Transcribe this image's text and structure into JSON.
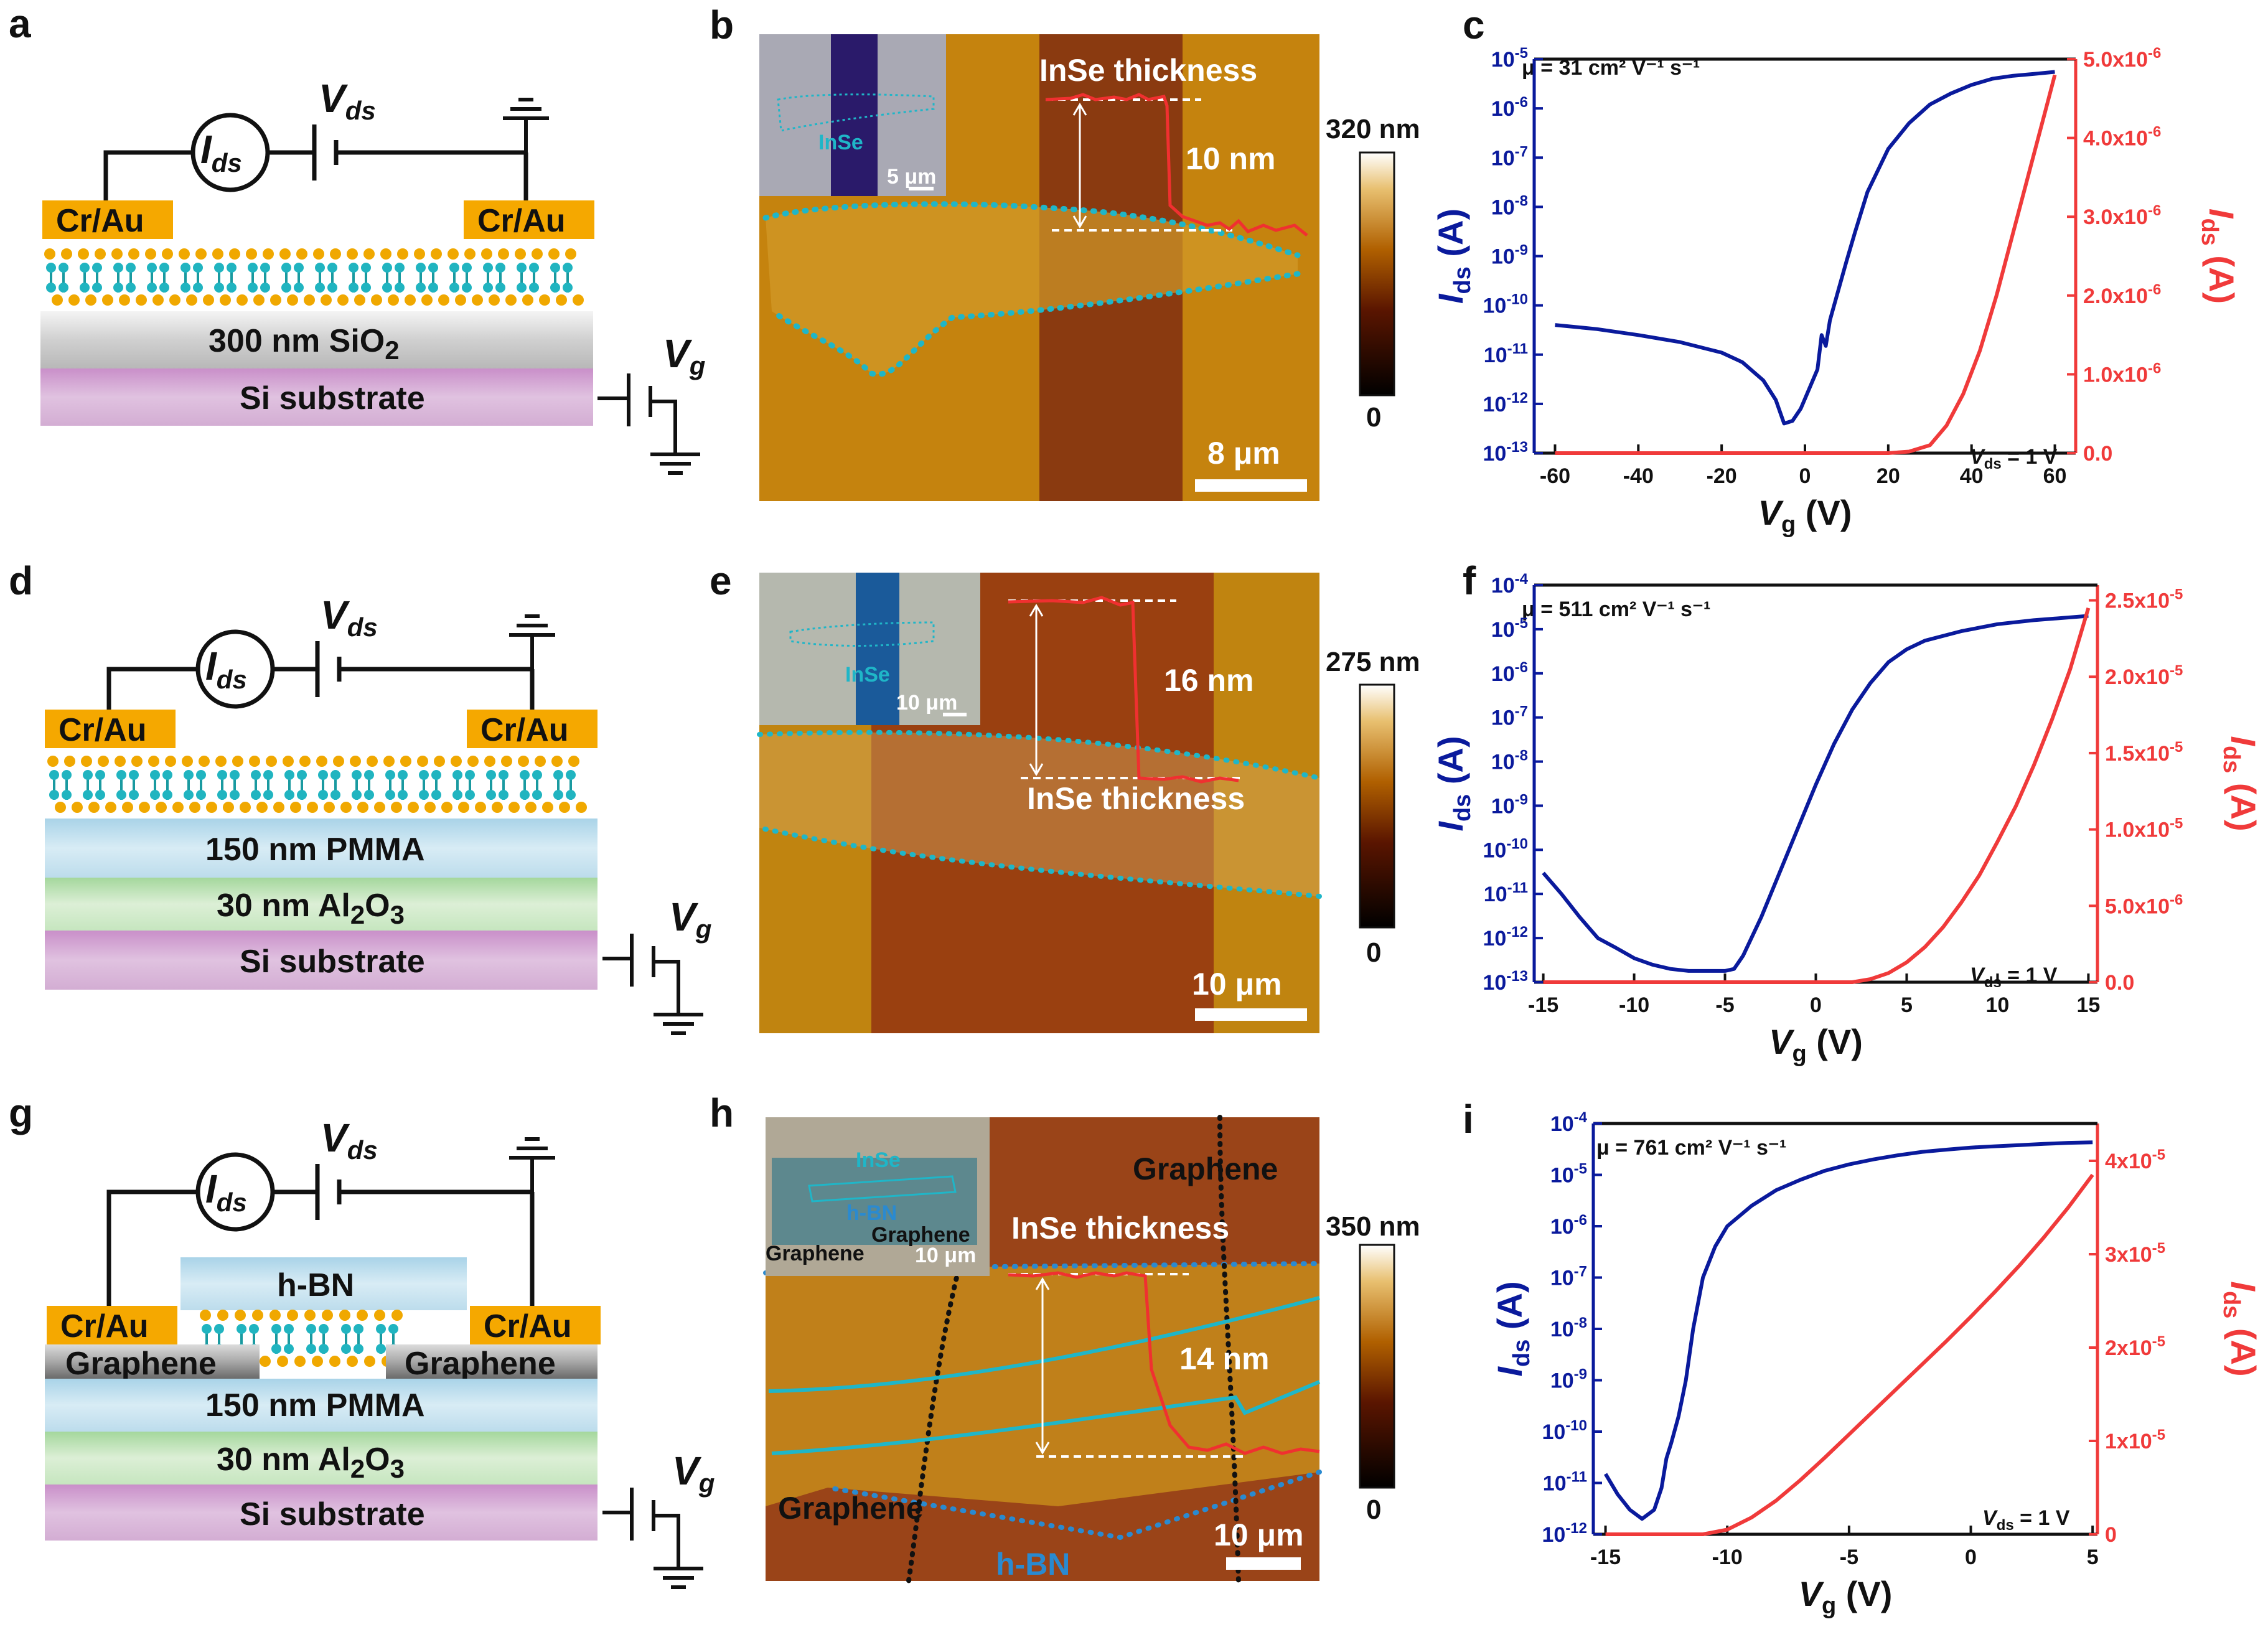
{
  "panels": {
    "a": {
      "label": "a",
      "vds": "V",
      "vds_sub": "ds",
      "ids": "I",
      "ids_sub": "ds",
      "vg": "V",
      "vg_sub": "g",
      "contact_left": "Cr/Au",
      "contact_right": "Cr/Au",
      "dielectric": "300 nm SiO",
      "dielectric_sub": "2",
      "substrate": "Si substrate"
    },
    "b": {
      "label": "b",
      "title": "InSe thickness",
      "step": "10 nm",
      "scale": "8 μm",
      "inset_material": "InSe",
      "inset_scale": "5 μm",
      "colorbar_max": "320 nm",
      "colorbar_min": "0"
    },
    "c": {
      "label": "c",
      "mobility": "μ = 31 cm² V⁻¹ s⁻¹",
      "vds_note": "V",
      "vds_note_sub": "ds",
      "vds_note_val": " = 1 V"
    },
    "d": {
      "label": "d",
      "vds": "V",
      "vds_sub": "ds",
      "ids": "I",
      "ids_sub": "ds",
      "vg": "V",
      "vg_sub": "g",
      "contact_left": "Cr/Au",
      "contact_right": "Cr/Au",
      "layer1": "150 nm PMMA",
      "layer2": "30 nm Al",
      "layer2_sub": "2",
      "layer2_tail": "O",
      "layer2_sub2": "3",
      "substrate": "Si substrate"
    },
    "e": {
      "label": "e",
      "title": "InSe thickness",
      "step": "16 nm",
      "scale": "10 μm",
      "inset_material": "InSe",
      "inset_scale": "10 μm",
      "colorbar_max": "275 nm",
      "colorbar_min": "0"
    },
    "f": {
      "label": "f",
      "mobility": "μ = 511 cm² V⁻¹ s⁻¹",
      "vds_note": "V",
      "vds_note_sub": "ds",
      "vds_note_val": " = 1 V"
    },
    "g": {
      "label": "g",
      "vds": "V",
      "vds_sub": "ds",
      "ids": "I",
      "ids_sub": "ds",
      "vg": "V",
      "vg_sub": "g",
      "top_layer": "h-BN",
      "contact_left": "Cr/Au",
      "contact_right": "Cr/Au",
      "graphene_left": "Graphene",
      "graphene_right": "Graphene",
      "layer1": "150 nm PMMA",
      "layer2": "30 nm Al",
      "layer2_sub": "2",
      "layer2_tail": "O",
      "layer2_sub2": "3",
      "substrate": "Si substrate"
    },
    "h": {
      "label": "h",
      "title": "InSe thickness",
      "step": "14 nm",
      "scale": "10 μm",
      "graphene_top": "Graphene",
      "graphene_bottom": "Graphene",
      "hbn": "h-BN",
      "inset_insE": "InSe",
      "inset_hbn": "h-BN",
      "inset_graphene_left": "Graphene",
      "inset_graphene_right": "Graphene",
      "inset_scale": "10 μm",
      "colorbar_max": "350 nm",
      "colorbar_min": "0"
    },
    "i": {
      "label": "i",
      "mobility": "μ = 761 cm² V⁻¹ s⁻¹",
      "vds_note": "V",
      "vds_note_sub": "ds",
      "vds_note_val": " = 1 V"
    }
  },
  "colors": {
    "log_series": "#0a1a9c",
    "lin_series": "#f03a3a",
    "gold": "#f5a800",
    "cyan": "#1fb6c8"
  },
  "chart_data": [
    {
      "id": "c",
      "type": "line",
      "xlabel": "Vg (V)",
      "ylabel_left": "Ids (A)",
      "ylabel_right": "Ids (A)",
      "x_ticks": [
        "-60",
        "-40",
        "-20",
        "0",
        "20",
        "40",
        "60"
      ],
      "x_range": [
        -65,
        65
      ],
      "left_ticks": [
        "10^-5",
        "10^-6",
        "10^-7",
        "10^-8",
        "10^-9",
        "10^-10",
        "10^-11",
        "10^-12",
        "10^-13"
      ],
      "right_ticks": [
        "5.0x10^-6",
        "4.0x10^-6",
        "3.0x10^-6",
        "2.0x10^-6",
        "1.0x10^-6",
        "0.0"
      ],
      "left_log_range": [
        -13,
        -5
      ],
      "right_range": [
        0,
        5e-06
      ],
      "series": [
        {
          "name": "Ids log",
          "axis": "left",
          "x": [
            -60,
            -50,
            -40,
            -30,
            -20,
            -15,
            -10,
            -7,
            -5,
            -3,
            -1,
            1,
            3,
            4,
            5,
            6,
            8,
            10,
            12,
            15,
            20,
            25,
            30,
            35,
            40,
            45,
            50,
            55,
            60
          ],
          "y": [
            4e-11,
            3.3e-11,
            2.5e-11,
            1.8e-11,
            1.1e-11,
            7e-12,
            3e-12,
            1.2e-12,
            4e-13,
            4.5e-13,
            8e-13,
            2e-12,
            5e-12,
            2.5e-11,
            1.5e-11,
            5e-11,
            2e-10,
            8e-10,
            3e-09,
            2e-08,
            1.5e-07,
            5e-07,
            1.2e-06,
            2e-06,
            3e-06,
            4e-06,
            4.6e-06,
            5e-06,
            5.5e-06
          ]
        },
        {
          "name": "Ids linear",
          "axis": "right",
          "x": [
            -60,
            20,
            25,
            30,
            34,
            38,
            42,
            46,
            50,
            54,
            58,
            60
          ],
          "y": [
            0,
            0,
            2e-08,
            1e-07,
            3.5e-07,
            7.5e-07,
            1.3e-06,
            2e-06,
            2.8e-06,
            3.6e-06,
            4.4e-06,
            4.8e-06
          ]
        }
      ]
    },
    {
      "id": "f",
      "type": "line",
      "xlabel": "Vg (V)",
      "ylabel_left": "Ids (A)",
      "ylabel_right": "Ids (A)",
      "x_ticks": [
        "-15",
        "-10",
        "-5",
        "0",
        "5",
        "10",
        "15"
      ],
      "x_range": [
        -15.5,
        15.5
      ],
      "left_ticks": [
        "10^-4",
        "10^-5",
        "10^-6",
        "10^-7",
        "10^-8",
        "10^-9",
        "10^-10",
        "10^-11",
        "10^-12",
        "10^-13"
      ],
      "right_ticks": [
        "2.5x10^-5",
        "2.0x10^-5",
        "1.5x10^-5",
        "1.0x10^-5",
        "5.0x10^-6",
        "0.0"
      ],
      "left_log_range": [
        -13,
        -4
      ],
      "right_range": [
        0,
        2.6e-05
      ],
      "series": [
        {
          "name": "Ids log",
          "axis": "left",
          "x": [
            -15,
            -14,
            -13,
            -12,
            -11,
            -10,
            -9,
            -8,
            -7,
            -6,
            -5,
            -4.5,
            -4,
            -3,
            -2,
            -1,
            0,
            1,
            2,
            3,
            4,
            5,
            6,
            8,
            10,
            12,
            15
          ],
          "y": [
            3e-11,
            1e-11,
            3e-12,
            1e-12,
            6e-13,
            3.5e-13,
            2.5e-13,
            2e-13,
            1.8e-13,
            1.8e-13,
            1.8e-13,
            2e-13,
            4e-13,
            3e-12,
            3e-11,
            3e-10,
            3e-09,
            2.5e-08,
            1.5e-07,
            6e-07,
            1.8e-06,
            3.5e-06,
            5.5e-06,
            9e-06,
            1.3e-05,
            1.6e-05,
            2e-05
          ]
        },
        {
          "name": "Ids linear",
          "axis": "right",
          "x": [
            -15,
            2,
            3,
            4,
            5,
            6,
            7,
            8,
            9,
            10,
            11,
            12,
            13,
            14,
            15
          ],
          "y": [
            0,
            0,
            2e-07,
            6e-07,
            1.3e-06,
            2.3e-06,
            3.6e-06,
            5.2e-06,
            7e-06,
            9.2e-06,
            1.15e-05,
            1.42e-05,
            1.72e-05,
            2.05e-05,
            2.45e-05
          ]
        }
      ]
    },
    {
      "id": "i",
      "type": "line",
      "xlabel": "Vg (V)",
      "ylabel_left": "Ids (A)",
      "ylabel_right": "Ids (A)",
      "x_ticks": [
        "-15",
        "-10",
        "-5",
        "0",
        "5"
      ],
      "x_range": [
        -15.5,
        5.2
      ],
      "left_ticks": [
        "10^-4",
        "10^-5",
        "10^-6",
        "10^-7",
        "10^-8",
        "10^-9",
        "10^-10",
        "10^-11",
        "10^-12"
      ],
      "right_ticks": [
        "4x10^-5",
        "3x10^-5",
        "2x10^-5",
        "1x10^-5",
        "0"
      ],
      "left_log_range": [
        -12,
        -4
      ],
      "right_range": [
        0,
        4.4e-05
      ],
      "series": [
        {
          "name": "Ids log",
          "axis": "left",
          "x": [
            -15,
            -14.5,
            -14,
            -13.5,
            -13,
            -12.7,
            -12.5,
            -12.3,
            -12,
            -11.7,
            -11.4,
            -11,
            -10.5,
            -10,
            -9,
            -8,
            -7,
            -6,
            -5,
            -4,
            -3,
            -2,
            -1,
            0,
            1,
            2,
            3,
            4,
            5
          ],
          "y": [
            1.5e-11,
            6e-12,
            3e-12,
            2e-12,
            3e-12,
            8e-12,
            3e-11,
            6e-11,
            2e-10,
            1e-09,
            1e-08,
            1e-07,
            4e-07,
            1e-06,
            2.5e-06,
            5e-06,
            8e-06,
            1.2e-05,
            1.6e-05,
            2e-05,
            2.4e-05,
            2.8e-05,
            3.1e-05,
            3.4e-05,
            3.6e-05,
            3.8e-05,
            4e-05,
            4.2e-05,
            4.3e-05
          ]
        },
        {
          "name": "Ids linear",
          "axis": "right",
          "x": [
            -15,
            -11,
            -10,
            -9,
            -8,
            -7,
            -6,
            -5,
            -4,
            -3,
            -2,
            -1,
            0,
            1,
            2,
            3,
            4,
            5
          ],
          "y": [
            0,
            0,
            5e-07,
            1.8e-06,
            3.6e-06,
            5.8e-06,
            8.2e-06,
            1.07e-05,
            1.32e-05,
            1.57e-05,
            1.82e-05,
            2.07e-05,
            2.33e-05,
            2.6e-05,
            2.88e-05,
            3.18e-05,
            3.5e-05,
            3.85e-05
          ]
        }
      ]
    }
  ]
}
